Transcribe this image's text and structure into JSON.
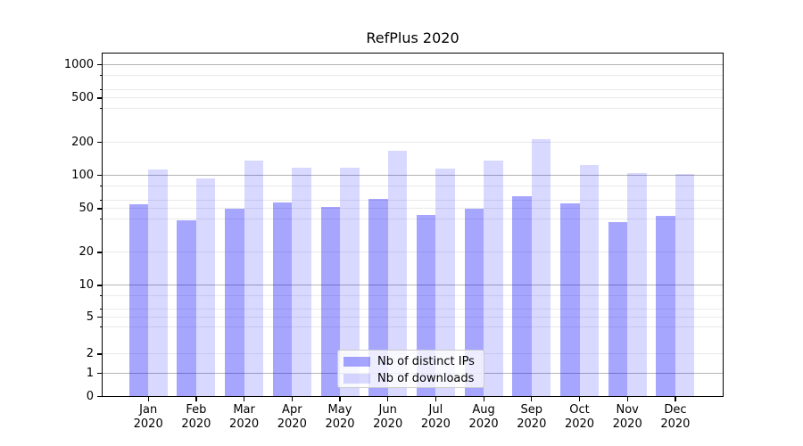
{
  "title": "RefPlus 2020",
  "legend": {
    "items": [
      {
        "label": "Nb of distinct IPs",
        "color": "rgba(0,0,255,0.35)"
      },
      {
        "label": "Nb of downloads",
        "color": "rgba(0,0,255,0.15)"
      }
    ]
  },
  "axes": {
    "ytick_labels": [
      "0",
      "1",
      "2",
      "5",
      "10",
      "20",
      "50",
      "100",
      "200",
      "500",
      "1000"
    ],
    "xtick_labels": [
      "Jan 2020",
      "Feb 2020",
      "Mar 2020",
      "Apr 2020",
      "May 2020",
      "Jun 2020",
      "Jul 2020",
      "Aug 2020",
      "Sep 2020",
      "Oct 2020",
      "Nov 2020",
      "Dec 2020"
    ]
  },
  "colors": {
    "series_ips": "rgba(0,0,255,0.35)",
    "series_downloads": "rgba(0,0,255,0.15)",
    "grid_major": "#b4b4b4",
    "grid_minor": "#eaeaea",
    "axis": "#000000",
    "background": "#ffffff"
  },
  "chart_data": {
    "type": "bar",
    "title": "RefPlus 2020",
    "categories": [
      "Jan 2020",
      "Feb 2020",
      "Mar 2020",
      "Apr 2020",
      "May 2020",
      "Jun 2020",
      "Jul 2020",
      "Aug 2020",
      "Sep 2020",
      "Oct 2020",
      "Nov 2020",
      "Dec 2020"
    ],
    "series": [
      {
        "name": "Nb of distinct IPs",
        "color": "rgba(0,0,255,0.35)",
        "values": [
          55,
          39,
          50,
          57,
          52,
          61,
          44,
          50,
          65,
          56,
          38,
          43
        ]
      },
      {
        "name": "Nb of downloads",
        "color": "rgba(0,0,255,0.15)",
        "values": [
          113,
          93,
          135,
          118,
          117,
          167,
          115,
          137,
          211,
          125,
          105,
          103
        ]
      }
    ],
    "xlabel": "",
    "ylabel": "",
    "yscale": "asinh",
    "yticks": [
      0,
      1,
      2,
      5,
      10,
      20,
      50,
      100,
      200,
      500,
      1000
    ],
    "minor_yticks": [
      4,
      6,
      8,
      40,
      60,
      80,
      400,
      600,
      800
    ],
    "major_grid_at": [
      1,
      10,
      100,
      1000
    ],
    "ylim": [
      0,
      1230
    ],
    "grid": "horizontal",
    "legend_position": "lower center"
  }
}
